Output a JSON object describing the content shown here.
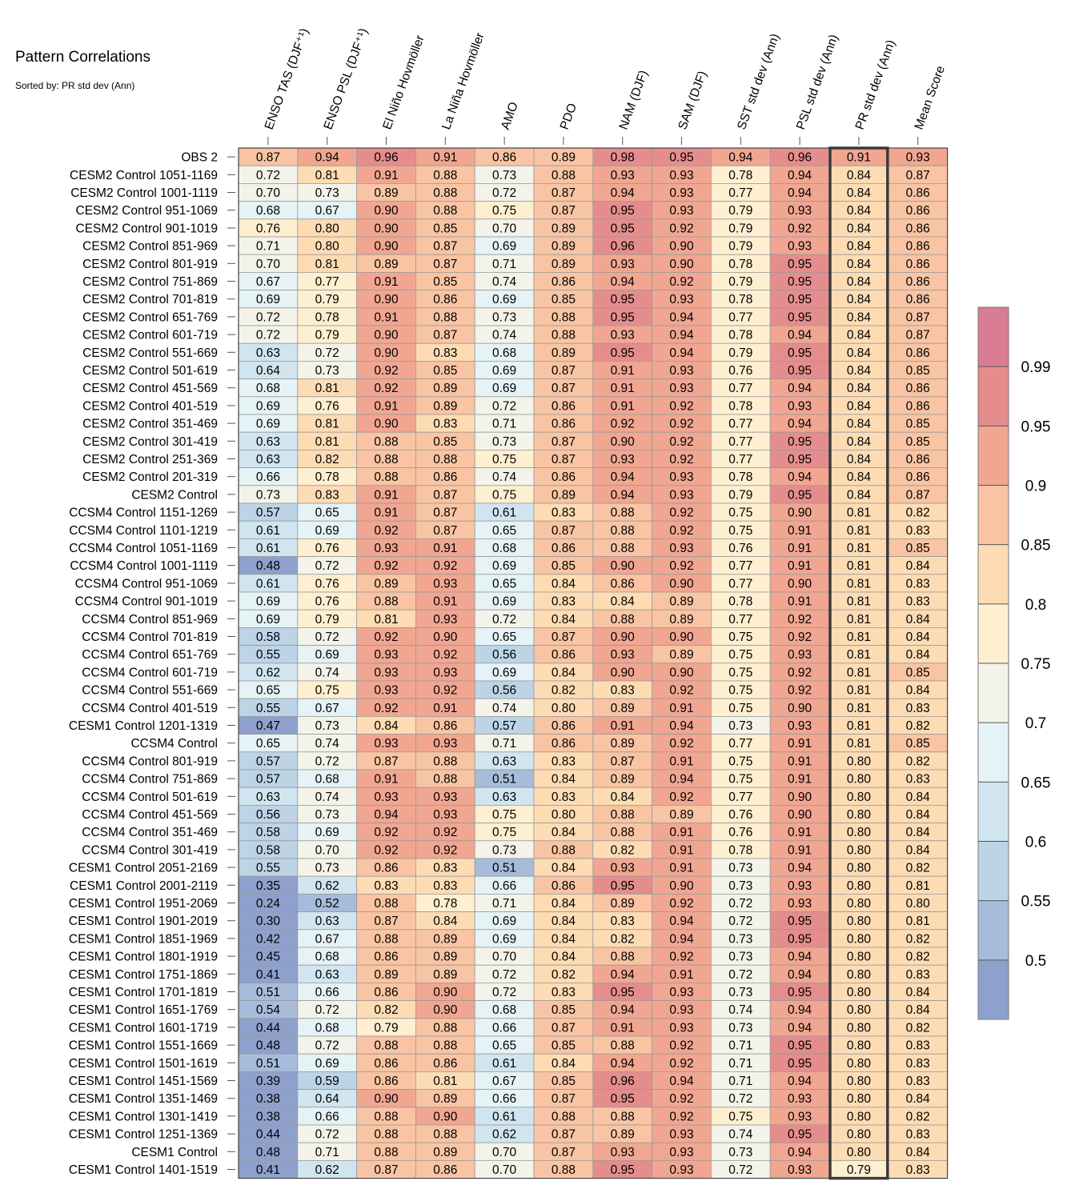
{
  "chart_data": {
    "type": "heatmap",
    "title": "Pattern Correlations",
    "subtitle": "Sorted by: PR std dev (Ann)",
    "highlighted_column": "PR std dev (Ann)",
    "columns": [
      "ENSO TAS (DJF⁺¹)",
      "ENSO PSL (DJF⁺¹)",
      "El Niño Hovmöller",
      "La Niña Hovmöller",
      "AMO",
      "PDO",
      "NAM (DJF)",
      "SAM (DJF)",
      "SST std dev (Ann)",
      "PSL std dev (Ann)",
      "PR std dev (Ann)",
      "Mean Score"
    ],
    "rows": [
      {
        "label": "OBS 2",
        "values": [
          0.87,
          0.94,
          0.96,
          0.91,
          0.86,
          0.89,
          0.98,
          0.95,
          0.94,
          0.96,
          0.91,
          0.93
        ]
      },
      {
        "label": "CESM2 Control 1051-1169",
        "values": [
          0.72,
          0.81,
          0.91,
          0.88,
          0.73,
          0.88,
          0.93,
          0.93,
          0.78,
          0.94,
          0.84,
          0.87
        ]
      },
      {
        "label": "CESM2 Control 1001-1119",
        "values": [
          0.7,
          0.73,
          0.89,
          0.88,
          0.72,
          0.87,
          0.94,
          0.93,
          0.77,
          0.94,
          0.84,
          0.86
        ]
      },
      {
        "label": "CESM2 Control 951-1069",
        "values": [
          0.68,
          0.67,
          0.9,
          0.88,
          0.75,
          0.87,
          0.95,
          0.93,
          0.79,
          0.93,
          0.84,
          0.86
        ]
      },
      {
        "label": "CESM2 Control 901-1019",
        "values": [
          0.76,
          0.8,
          0.9,
          0.85,
          0.7,
          0.89,
          0.95,
          0.92,
          0.79,
          0.92,
          0.84,
          0.86
        ]
      },
      {
        "label": "CESM2 Control 851-969",
        "values": [
          0.71,
          0.8,
          0.9,
          0.87,
          0.69,
          0.89,
          0.96,
          0.9,
          0.79,
          0.93,
          0.84,
          0.86
        ]
      },
      {
        "label": "CESM2 Control 801-919",
        "values": [
          0.7,
          0.81,
          0.89,
          0.87,
          0.71,
          0.89,
          0.93,
          0.9,
          0.78,
          0.95,
          0.84,
          0.86
        ]
      },
      {
        "label": "CESM2 Control 751-869",
        "values": [
          0.67,
          0.77,
          0.91,
          0.85,
          0.74,
          0.86,
          0.94,
          0.92,
          0.79,
          0.95,
          0.84,
          0.86
        ]
      },
      {
        "label": "CESM2 Control 701-819",
        "values": [
          0.69,
          0.79,
          0.9,
          0.86,
          0.69,
          0.85,
          0.95,
          0.93,
          0.78,
          0.95,
          0.84,
          0.86
        ]
      },
      {
        "label": "CESM2 Control 651-769",
        "values": [
          0.72,
          0.78,
          0.91,
          0.88,
          0.73,
          0.88,
          0.95,
          0.94,
          0.77,
          0.95,
          0.84,
          0.87
        ]
      },
      {
        "label": "CESM2 Control 601-719",
        "values": [
          0.72,
          0.79,
          0.9,
          0.87,
          0.74,
          0.88,
          0.93,
          0.94,
          0.78,
          0.94,
          0.84,
          0.87
        ]
      },
      {
        "label": "CESM2 Control 551-669",
        "values": [
          0.63,
          0.72,
          0.9,
          0.83,
          0.68,
          0.89,
          0.95,
          0.94,
          0.79,
          0.95,
          0.84,
          0.86
        ]
      },
      {
        "label": "CESM2 Control 501-619",
        "values": [
          0.64,
          0.73,
          0.92,
          0.85,
          0.69,
          0.87,
          0.91,
          0.93,
          0.76,
          0.95,
          0.84,
          0.85
        ]
      },
      {
        "label": "CESM2 Control 451-569",
        "values": [
          0.68,
          0.81,
          0.92,
          0.89,
          0.69,
          0.87,
          0.91,
          0.93,
          0.77,
          0.94,
          0.84,
          0.86
        ]
      },
      {
        "label": "CESM2 Control 401-519",
        "values": [
          0.69,
          0.76,
          0.91,
          0.89,
          0.72,
          0.86,
          0.91,
          0.92,
          0.78,
          0.93,
          0.84,
          0.86
        ]
      },
      {
        "label": "CESM2 Control 351-469",
        "values": [
          0.69,
          0.81,
          0.9,
          0.83,
          0.71,
          0.86,
          0.92,
          0.92,
          0.77,
          0.94,
          0.84,
          0.85
        ]
      },
      {
        "label": "CESM2 Control 301-419",
        "values": [
          0.63,
          0.81,
          0.88,
          0.85,
          0.73,
          0.87,
          0.9,
          0.92,
          0.77,
          0.95,
          0.84,
          0.85
        ]
      },
      {
        "label": "CESM2 Control 251-369",
        "values": [
          0.63,
          0.82,
          0.88,
          0.88,
          0.75,
          0.87,
          0.93,
          0.92,
          0.77,
          0.95,
          0.84,
          0.86
        ]
      },
      {
        "label": "CESM2 Control 201-319",
        "values": [
          0.66,
          0.78,
          0.88,
          0.86,
          0.74,
          0.86,
          0.94,
          0.93,
          0.78,
          0.94,
          0.84,
          0.86
        ]
      },
      {
        "label": "CESM2 Control",
        "values": [
          0.73,
          0.83,
          0.91,
          0.87,
          0.75,
          0.89,
          0.94,
          0.93,
          0.79,
          0.95,
          0.84,
          0.87
        ]
      },
      {
        "label": "CCSM4 Control 1151-1269",
        "values": [
          0.57,
          0.65,
          0.91,
          0.87,
          0.61,
          0.83,
          0.88,
          0.92,
          0.75,
          0.9,
          0.81,
          0.82
        ]
      },
      {
        "label": "CCSM4 Control 1101-1219",
        "values": [
          0.61,
          0.69,
          0.92,
          0.87,
          0.65,
          0.87,
          0.88,
          0.92,
          0.75,
          0.91,
          0.81,
          0.83
        ]
      },
      {
        "label": "CCSM4 Control 1051-1169",
        "values": [
          0.61,
          0.76,
          0.93,
          0.91,
          0.68,
          0.86,
          0.88,
          0.93,
          0.76,
          0.91,
          0.81,
          0.85
        ]
      },
      {
        "label": "CCSM4 Control 1001-1119",
        "values": [
          0.48,
          0.72,
          0.92,
          0.92,
          0.69,
          0.85,
          0.9,
          0.92,
          0.77,
          0.91,
          0.81,
          0.84
        ]
      },
      {
        "label": "CCSM4 Control 951-1069",
        "values": [
          0.61,
          0.76,
          0.89,
          0.93,
          0.65,
          0.84,
          0.86,
          0.9,
          0.77,
          0.9,
          0.81,
          0.83
        ]
      },
      {
        "label": "CCSM4 Control 901-1019",
        "values": [
          0.69,
          0.76,
          0.88,
          0.91,
          0.69,
          0.83,
          0.84,
          0.89,
          0.78,
          0.91,
          0.81,
          0.83
        ]
      },
      {
        "label": "CCSM4 Control 851-969",
        "values": [
          0.69,
          0.79,
          0.81,
          0.93,
          0.72,
          0.84,
          0.88,
          0.89,
          0.77,
          0.92,
          0.81,
          0.84
        ]
      },
      {
        "label": "CCSM4 Control 701-819",
        "values": [
          0.58,
          0.72,
          0.92,
          0.9,
          0.65,
          0.87,
          0.9,
          0.9,
          0.75,
          0.92,
          0.81,
          0.84
        ]
      },
      {
        "label": "CCSM4 Control 651-769",
        "values": [
          0.55,
          0.69,
          0.93,
          0.92,
          0.56,
          0.86,
          0.93,
          0.89,
          0.75,
          0.93,
          0.81,
          0.84
        ]
      },
      {
        "label": "CCSM4 Control 601-719",
        "values": [
          0.62,
          0.74,
          0.93,
          0.93,
          0.69,
          0.84,
          0.9,
          0.9,
          0.75,
          0.92,
          0.81,
          0.85
        ]
      },
      {
        "label": "CCSM4 Control 551-669",
        "values": [
          0.65,
          0.75,
          0.93,
          0.92,
          0.56,
          0.82,
          0.83,
          0.92,
          0.75,
          0.92,
          0.81,
          0.84
        ]
      },
      {
        "label": "CCSM4 Control 401-519",
        "values": [
          0.55,
          0.67,
          0.92,
          0.91,
          0.74,
          0.8,
          0.89,
          0.91,
          0.75,
          0.9,
          0.81,
          0.83
        ]
      },
      {
        "label": "CESM1 Control 1201-1319",
        "values": [
          0.47,
          0.73,
          0.84,
          0.86,
          0.57,
          0.86,
          0.91,
          0.94,
          0.73,
          0.93,
          0.81,
          0.82
        ]
      },
      {
        "label": "CCSM4 Control",
        "values": [
          0.65,
          0.74,
          0.93,
          0.93,
          0.71,
          0.86,
          0.89,
          0.92,
          0.77,
          0.91,
          0.81,
          0.85
        ]
      },
      {
        "label": "CCSM4 Control 801-919",
        "values": [
          0.57,
          0.72,
          0.87,
          0.88,
          0.63,
          0.83,
          0.87,
          0.91,
          0.75,
          0.91,
          0.8,
          0.82
        ]
      },
      {
        "label": "CCSM4 Control 751-869",
        "values": [
          0.57,
          0.68,
          0.91,
          0.88,
          0.51,
          0.84,
          0.89,
          0.94,
          0.75,
          0.91,
          0.8,
          0.83
        ]
      },
      {
        "label": "CCSM4 Control 501-619",
        "values": [
          0.63,
          0.74,
          0.93,
          0.93,
          0.63,
          0.83,
          0.84,
          0.92,
          0.77,
          0.9,
          0.8,
          0.84
        ]
      },
      {
        "label": "CCSM4 Control 451-569",
        "values": [
          0.56,
          0.73,
          0.94,
          0.93,
          0.75,
          0.8,
          0.88,
          0.89,
          0.76,
          0.9,
          0.8,
          0.84
        ]
      },
      {
        "label": "CCSM4 Control 351-469",
        "values": [
          0.58,
          0.69,
          0.92,
          0.92,
          0.75,
          0.84,
          0.88,
          0.91,
          0.76,
          0.91,
          0.8,
          0.84
        ]
      },
      {
        "label": "CCSM4 Control 301-419",
        "values": [
          0.58,
          0.7,
          0.92,
          0.92,
          0.73,
          0.88,
          0.82,
          0.91,
          0.78,
          0.91,
          0.8,
          0.84
        ]
      },
      {
        "label": "CESM1 Control 2051-2169",
        "values": [
          0.55,
          0.73,
          0.86,
          0.83,
          0.51,
          0.84,
          0.93,
          0.91,
          0.73,
          0.94,
          0.8,
          0.82
        ]
      },
      {
        "label": "CESM1 Control 2001-2119",
        "values": [
          0.35,
          0.62,
          0.83,
          0.83,
          0.66,
          0.86,
          0.95,
          0.9,
          0.73,
          0.93,
          0.8,
          0.81
        ]
      },
      {
        "label": "CESM1 Control 1951-2069",
        "values": [
          0.24,
          0.52,
          0.88,
          0.78,
          0.71,
          0.84,
          0.89,
          0.92,
          0.72,
          0.93,
          0.8,
          0.8
        ]
      },
      {
        "label": "CESM1 Control 1901-2019",
        "values": [
          0.3,
          0.63,
          0.87,
          0.84,
          0.69,
          0.84,
          0.83,
          0.94,
          0.72,
          0.95,
          0.8,
          0.81
        ]
      },
      {
        "label": "CESM1 Control 1851-1969",
        "values": [
          0.42,
          0.67,
          0.88,
          0.89,
          0.69,
          0.84,
          0.82,
          0.94,
          0.73,
          0.95,
          0.8,
          0.82
        ]
      },
      {
        "label": "CESM1 Control 1801-1919",
        "values": [
          0.45,
          0.68,
          0.86,
          0.89,
          0.7,
          0.84,
          0.88,
          0.92,
          0.73,
          0.94,
          0.8,
          0.82
        ]
      },
      {
        "label": "CESM1 Control 1751-1869",
        "values": [
          0.41,
          0.63,
          0.89,
          0.89,
          0.72,
          0.82,
          0.94,
          0.91,
          0.72,
          0.94,
          0.8,
          0.83
        ]
      },
      {
        "label": "CESM1 Control 1701-1819",
        "values": [
          0.51,
          0.66,
          0.86,
          0.9,
          0.72,
          0.83,
          0.95,
          0.93,
          0.73,
          0.95,
          0.8,
          0.84
        ]
      },
      {
        "label": "CESM1 Control 1651-1769",
        "values": [
          0.54,
          0.72,
          0.82,
          0.9,
          0.68,
          0.85,
          0.94,
          0.93,
          0.74,
          0.94,
          0.8,
          0.84
        ]
      },
      {
        "label": "CESM1 Control 1601-1719",
        "values": [
          0.44,
          0.68,
          0.79,
          0.88,
          0.66,
          0.87,
          0.91,
          0.93,
          0.73,
          0.94,
          0.8,
          0.82
        ]
      },
      {
        "label": "CESM1 Control 1551-1669",
        "values": [
          0.48,
          0.72,
          0.88,
          0.88,
          0.65,
          0.85,
          0.88,
          0.92,
          0.71,
          0.95,
          0.8,
          0.83
        ]
      },
      {
        "label": "CESM1 Control 1501-1619",
        "values": [
          0.51,
          0.69,
          0.86,
          0.86,
          0.61,
          0.84,
          0.94,
          0.92,
          0.71,
          0.95,
          0.8,
          0.83
        ]
      },
      {
        "label": "CESM1 Control 1451-1569",
        "values": [
          0.39,
          0.59,
          0.86,
          0.81,
          0.67,
          0.85,
          0.96,
          0.94,
          0.71,
          0.94,
          0.8,
          0.83
        ]
      },
      {
        "label": "CESM1 Control 1351-1469",
        "values": [
          0.38,
          0.64,
          0.9,
          0.89,
          0.66,
          0.87,
          0.95,
          0.92,
          0.72,
          0.93,
          0.8,
          0.84
        ]
      },
      {
        "label": "CESM1 Control 1301-1419",
        "values": [
          0.38,
          0.66,
          0.88,
          0.9,
          0.61,
          0.88,
          0.88,
          0.92,
          0.75,
          0.93,
          0.8,
          0.82
        ]
      },
      {
        "label": "CESM1 Control 1251-1369",
        "values": [
          0.44,
          0.72,
          0.88,
          0.88,
          0.62,
          0.87,
          0.89,
          0.93,
          0.74,
          0.95,
          0.8,
          0.83
        ]
      },
      {
        "label": "CESM1 Control",
        "values": [
          0.48,
          0.71,
          0.88,
          0.89,
          0.7,
          0.87,
          0.93,
          0.93,
          0.73,
          0.94,
          0.8,
          0.84
        ]
      },
      {
        "label": "CESM1 Control 1401-1519",
        "values": [
          0.41,
          0.62,
          0.87,
          0.86,
          0.7,
          0.88,
          0.95,
          0.93,
          0.72,
          0.93,
          0.79,
          0.83
        ]
      }
    ],
    "colorbar": {
      "ticks": [
        "0.99",
        "0.95",
        "0.9",
        "0.85",
        "0.8",
        "0.75",
        "0.7",
        "0.65",
        "0.6",
        "0.55",
        "0.5"
      ],
      "levels": [
        0.5,
        0.55,
        0.6,
        0.65,
        0.7,
        0.75,
        0.8,
        0.85,
        0.9,
        0.95,
        0.99
      ],
      "colors": [
        "#8ea0cc",
        "#a6bcda",
        "#bcd4e6",
        "#d0e5ef",
        "#e5f2f6",
        "#f4f3ea",
        "#fdefd0",
        "#fddcb4",
        "#f9c4a3",
        "#f1a691",
        "#e58d8d",
        "#d87d93"
      ]
    }
  }
}
